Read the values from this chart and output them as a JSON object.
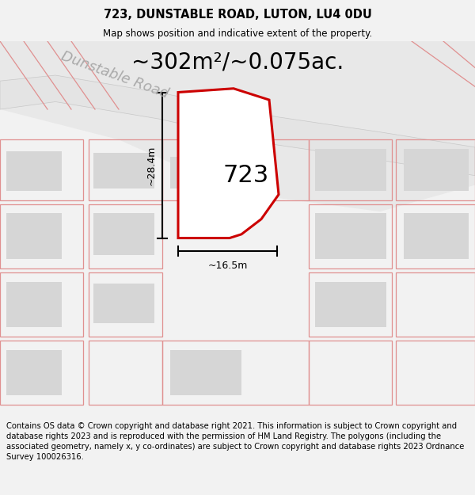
{
  "title_line1": "723, DUNSTABLE ROAD, LUTON, LU4 0DU",
  "title_line2": "Map shows position and indicative extent of the property.",
  "area_text": "~302m²/~0.075ac.",
  "label_723": "723",
  "dim_height": "~28.4m",
  "dim_width": "~16.5m",
  "road_label": "Dunstable Road",
  "footer_text": "Contains OS data © Crown copyright and database right 2021. This information is subject to Crown copyright and database rights 2023 and is reproduced with the permission of HM Land Registry. The polygons (including the associated geometry, namely x, y co-ordinates) are subject to Crown copyright and database rights 2023 Ordnance Survey 100026316.",
  "bg_color": "#f2f2f2",
  "map_bg": "#ffffff",
  "plot_fill": "#ffffff",
  "plot_edge": "#cc0000",
  "building_fill": "#d6d6d6",
  "parcel_edge": "#e09090",
  "road_fill": "#e8e8e8",
  "road_edge": "#cccccc",
  "title_fs": 10.5,
  "subtitle_fs": 8.5,
  "area_fs": 20,
  "label_fs": 22,
  "dim_fs": 9,
  "road_fs": 13,
  "footer_fs": 7.2
}
